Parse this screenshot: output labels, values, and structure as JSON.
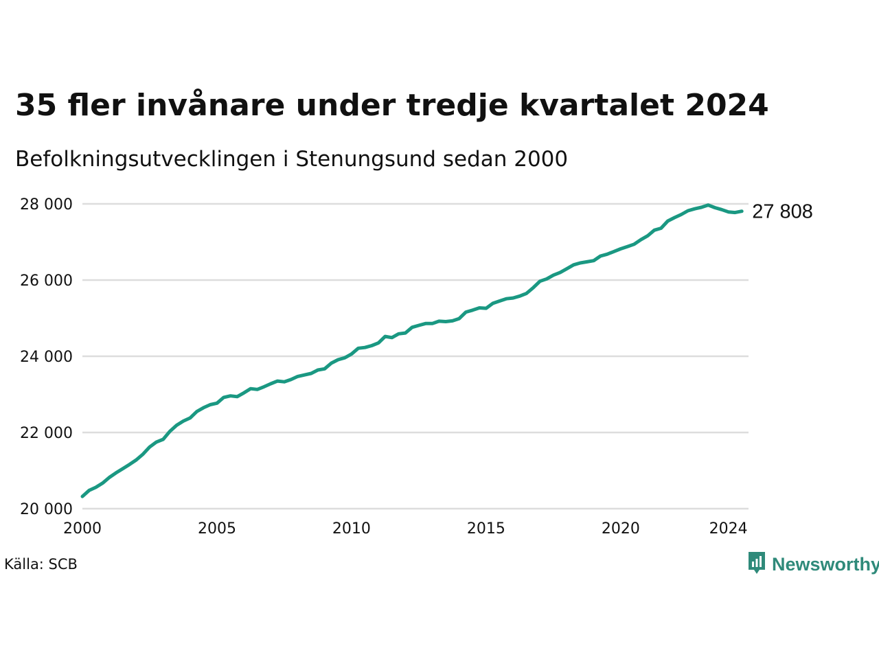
{
  "title": "35 fler invånare under tredje kvartalet 2024",
  "subtitle": "Befolkningsutvecklingen i Stenungsund sedan 2000",
  "source": "Källa: SCB",
  "brand": {
    "name": "Newsworthy",
    "icon": "newsworthy-logo-icon",
    "color": "#2f8a7a"
  },
  "colors": {
    "line": "#1a9882",
    "grid": "#dddddd"
  },
  "end_label": "27 808",
  "chart_data": {
    "type": "line",
    "title": "35 fler invånare under tredje kvartalet 2024",
    "subtitle": "Befolkningsutvecklingen i Stenungsund sedan 2000",
    "xlabel": "",
    "ylabel": "",
    "xlim": [
      2000.0,
      2024.75
    ],
    "ylim": [
      20000,
      28000
    ],
    "yticks": [
      20000,
      22000,
      24000,
      26000,
      28000
    ],
    "ytick_labels": [
      "20 000",
      "22 000",
      "24 000",
      "26 000",
      "28 000"
    ],
    "xticks": [
      2000,
      2005,
      2010,
      2015,
      2020,
      2024
    ],
    "xtick_labels": [
      "2000",
      "2005",
      "2010",
      "2015",
      "2020",
      "2024"
    ],
    "grid": "horizontal",
    "series": [
      {
        "x": [
          2000.0,
          2000.25,
          2000.5,
          2000.75,
          2001.0,
          2001.25,
          2001.5,
          2001.75,
          2002.0,
          2002.25,
          2002.5,
          2002.75,
          2003.0,
          2003.25,
          2003.5,
          2003.75,
          2004.0,
          2004.25,
          2004.5,
          2004.75,
          2005.0,
          2005.25,
          2005.5,
          2005.75,
          2006.0,
          2006.25,
          2006.5,
          2006.75,
          2007.0,
          2007.25,
          2007.5,
          2007.75,
          2008.0,
          2008.25,
          2008.5,
          2008.75,
          2009.0,
          2009.25,
          2009.5,
          2009.75,
          2010.0,
          2010.25,
          2010.5,
          2010.75,
          2011.0,
          2011.25,
          2011.5,
          2011.75,
          2012.0,
          2012.25,
          2012.5,
          2012.75,
          2013.0,
          2013.25,
          2013.5,
          2013.75,
          2014.0,
          2014.25,
          2014.5,
          2014.75,
          2015.0,
          2015.25,
          2015.5,
          2015.75,
          2016.0,
          2016.25,
          2016.5,
          2016.75,
          2017.0,
          2017.25,
          2017.5,
          2017.75,
          2018.0,
          2018.25,
          2018.5,
          2018.75,
          2019.0,
          2019.25,
          2019.5,
          2019.75,
          2020.0,
          2020.25,
          2020.5,
          2020.75,
          2021.0,
          2021.25,
          2021.5,
          2021.75,
          2022.0,
          2022.25,
          2022.5,
          2022.75,
          2023.0,
          2023.25,
          2023.5,
          2023.75,
          2024.0,
          2024.25,
          2024.5
        ],
        "values": [
          20320,
          20480,
          20560,
          20670,
          20820,
          20940,
          21050,
          21160,
          21280,
          21430,
          21620,
          21750,
          21820,
          22030,
          22190,
          22300,
          22380,
          22550,
          22650,
          22730,
          22770,
          22920,
          22960,
          22940,
          23040,
          23150,
          23130,
          23200,
          23280,
          23350,
          23330,
          23390,
          23470,
          23510,
          23550,
          23640,
          23670,
          23820,
          23910,
          23960,
          24060,
          24210,
          24230,
          24280,
          24350,
          24520,
          24490,
          24590,
          24610,
          24760,
          24810,
          24860,
          24860,
          24920,
          24910,
          24930,
          24990,
          25160,
          25210,
          25270,
          25260,
          25390,
          25450,
          25510,
          25530,
          25580,
          25650,
          25800,
          25970,
          26030,
          26130,
          26200,
          26300,
          26400,
          26450,
          26480,
          26510,
          26630,
          26680,
          26750,
          26820,
          26880,
          26940,
          27060,
          27160,
          27310,
          27360,
          27550,
          27640,
          27720,
          27820,
          27870,
          27910,
          27970,
          27900,
          27850,
          27790,
          27773,
          27808
        ]
      }
    ],
    "end_value": 27808
  }
}
